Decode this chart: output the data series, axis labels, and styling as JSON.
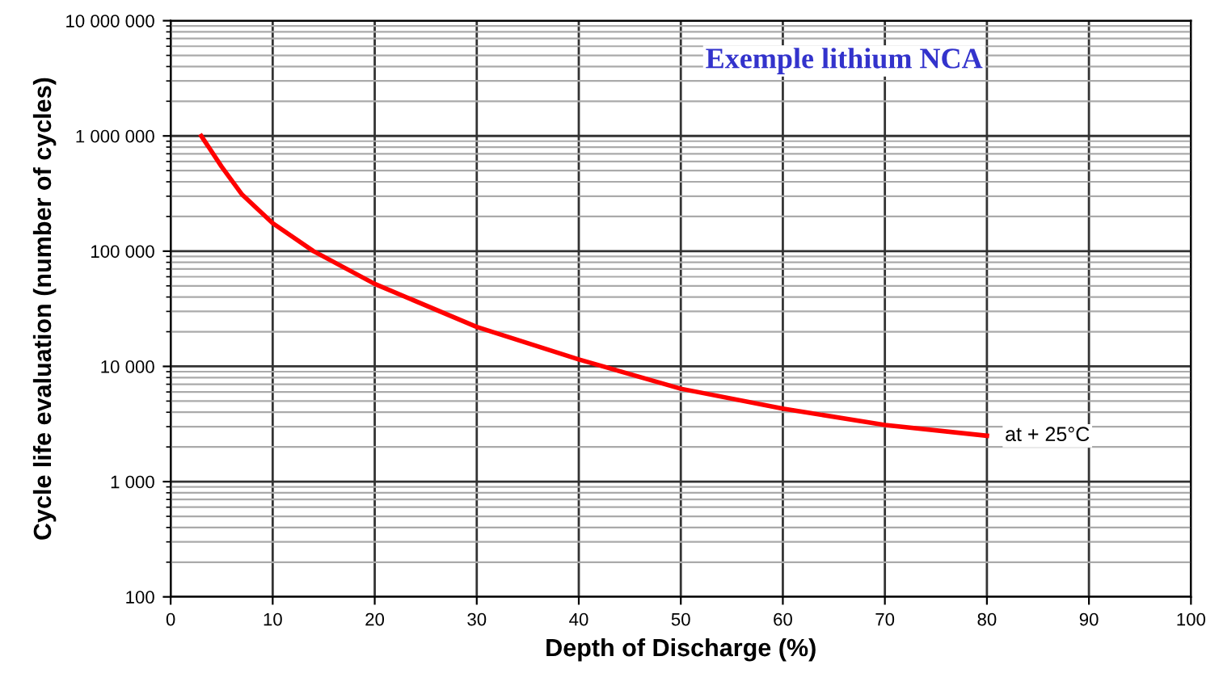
{
  "chart_data": {
    "type": "line",
    "title": "Exemple lithium NCA",
    "xlabel": "Depth of Discharge (%)",
    "ylabel": "Cycle life evaluation (number of cycles)",
    "x": [
      3,
      5,
      7,
      10,
      14,
      20,
      30,
      40,
      50,
      60,
      70,
      80
    ],
    "series": [
      {
        "color": "#ff0000",
        "values": [
          1000000,
          540000,
          310000,
          175000,
          100000,
          52000,
          22000,
          11500,
          6400,
          4300,
          3100,
          2500
        ]
      }
    ],
    "log": "y",
    "xlim": [
      0,
      100
    ],
    "ylim": [
      100,
      10000000
    ],
    "xticks": [
      0,
      10,
      20,
      30,
      40,
      50,
      60,
      70,
      80,
      90,
      100
    ],
    "yticks": [
      {
        "value": 100,
        "label": "100"
      },
      {
        "value": 1000,
        "label": "1 000"
      },
      {
        "value": 10000,
        "label": "10 000"
      },
      {
        "value": 100000,
        "label": "100 000"
      },
      {
        "value": 1000000,
        "label": "1 000 000"
      },
      {
        "value": 10000000,
        "label": "10 000 000"
      }
    ],
    "grid": true,
    "marker": "none",
    "line_style": "solid",
    "annotations": [
      {
        "text": "at + 25°C",
        "x": 80,
        "y": 2500
      }
    ]
  }
}
